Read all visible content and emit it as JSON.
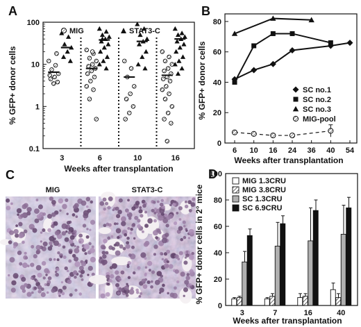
{
  "panels": {
    "A": "A",
    "B": "B",
    "C": "C",
    "D": "D"
  },
  "chart_data": [
    {
      "panel": "A",
      "type": "scatter",
      "yscale": "log",
      "ylim": [
        0.1,
        100
      ],
      "ylabel": "% GFP+ donor cells",
      "xlabel": "Weeks after transplantation",
      "yticks": [
        "0.1",
        "1",
        "10",
        "100"
      ],
      "categories": [
        "3",
        "6",
        "10",
        "16"
      ],
      "legend": [
        "MIG",
        "STAT3-C"
      ],
      "series": [
        {
          "name": "MIG",
          "marker": "open-circle",
          "groups": [
            [
              12,
              9.5,
              7.5,
              6,
              5,
              4.5,
              3.8,
              3.5,
              5.5,
              18
            ],
            [
              22,
              18,
              14,
              12,
              10,
              9,
              8,
              7,
              6,
              5,
              4,
              3,
              2.5,
              1.5,
              0.5,
              20
            ],
            [
              12,
              8,
              5,
              3,
              2,
              1.5,
              1,
              0.7,
              0.5
            ],
            [
              20,
              15,
              12,
              10,
              8,
              7,
              6,
              5,
              4.5,
              4,
              3,
              2.5,
              2,
              1.5,
              1,
              0.7,
              0.5,
              0.4,
              0.15
            ]
          ],
          "medians": [
            6.5,
            8,
            5,
            5.5
          ]
        },
        {
          "name": "STAT3-C",
          "marker": "filled-triangle",
          "groups": [
            [
              55,
              45,
              30,
              25,
              20,
              15,
              12
            ],
            [
              70,
              60,
              50,
              45,
              40,
              35,
              30,
              25,
              20,
              15,
              12,
              10,
              8,
              40
            ],
            [
              90,
              70,
              50,
              40,
              35,
              30,
              20,
              15,
              10,
              8
            ],
            [
              70,
              55,
              50,
              45,
              40,
              35,
              30,
              25,
              20,
              15,
              12,
              10,
              8,
              6
            ]
          ],
          "medians": [
            25,
            38,
            35,
            40
          ]
        }
      ]
    },
    {
      "panel": "B",
      "type": "line",
      "ylim": [
        0,
        85
      ],
      "ylabel": "% GFP+ donor cells",
      "xlabel": "Weeks after transplantation",
      "yticks": [
        "0",
        "20",
        "40",
        "60",
        "80"
      ],
      "categories": [
        "6",
        "10",
        "16",
        "24",
        "36",
        "40",
        "54"
      ],
      "legend": [
        "SC no.1",
        "SC no.2",
        "SC no.3",
        "MIG-pool"
      ],
      "series": [
        {
          "name": "SC no.1",
          "marker": "filled-diamond",
          "x": [
            "6",
            "10",
            "16",
            "24",
            "40",
            "54"
          ],
          "values": [
            42,
            48,
            52,
            61,
            64,
            66
          ]
        },
        {
          "name": "SC no.2",
          "marker": "filled-square",
          "x": [
            "6",
            "10",
            "16",
            "24",
            "40"
          ],
          "values": [
            40,
            64,
            72,
            72,
            66
          ]
        },
        {
          "name": "SC no.3",
          "marker": "filled-triangle",
          "x": [
            "6",
            "16",
            "36"
          ],
          "values": [
            72,
            82,
            81
          ]
        },
        {
          "name": "MIG-pool",
          "marker": "open-hatched-circle",
          "dashed": true,
          "x": [
            "6",
            "10",
            "16",
            "24",
            "40"
          ],
          "values": [
            7,
            6,
            5,
            5,
            8
          ],
          "error": [
            0,
            0,
            0,
            0,
            4
          ]
        }
      ]
    },
    {
      "panel": "C",
      "type": "image",
      "labels": [
        "MIG",
        "STAT3-C"
      ]
    },
    {
      "panel": "D",
      "type": "bar",
      "ylim": [
        0,
        100
      ],
      "ylabel": "% GFP+ donor cells in 2° mice",
      "xlabel": "Weeks after transplantation",
      "yticks": [
        "0",
        "20",
        "40",
        "60",
        "80",
        "100"
      ],
      "categories": [
        "3",
        "7",
        "16",
        "40"
      ],
      "legend": [
        "MIG 1.3CRU",
        "MIG 3.8CRU",
        "SC 1.3CRU",
        "SC 6.9CRU"
      ],
      "series": [
        {
          "name": "MIG 1.3CRU",
          "fill": "white",
          "values": [
            5,
            5,
            6,
            12
          ],
          "error": [
            1,
            1,
            3,
            5
          ]
        },
        {
          "name": "MIG 3.8CRU",
          "fill": "hatched",
          "values": [
            6,
            7,
            7,
            6
          ],
          "error": [
            1,
            2,
            2,
            3
          ]
        },
        {
          "name": "SC 1.3CRU",
          "fill": "gray",
          "values": [
            33,
            45,
            49,
            54
          ],
          "error": [
            8,
            18,
            25,
            22
          ]
        },
        {
          "name": "SC 6.9CRU",
          "fill": "black",
          "values": [
            53,
            62,
            72,
            74
          ],
          "error": [
            5,
            6,
            8,
            8
          ]
        }
      ]
    }
  ]
}
